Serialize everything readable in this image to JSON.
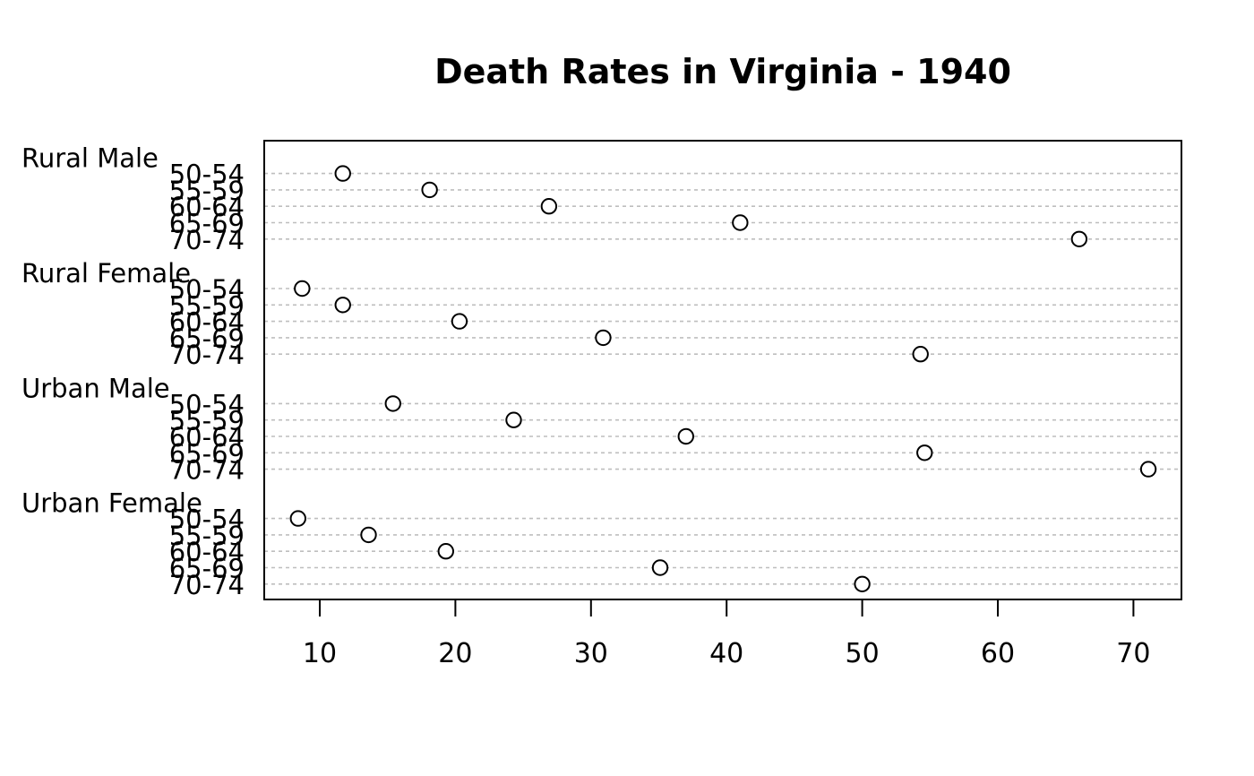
{
  "chart_data": {
    "type": "scatter",
    "title": "Death Rates in Virginia - 1940",
    "xlabel": "",
    "ylabel": "",
    "xlim": [
      5.9,
      73.5
    ],
    "xticks": [
      10,
      20,
      30,
      40,
      50,
      60,
      70
    ],
    "grid": "dotted horizontal guides",
    "categories": [
      "50-54",
      "55-59",
      "60-64",
      "65-69",
      "70-74"
    ],
    "groups": [
      {
        "name": "Rural Male",
        "values": [
          11.7,
          18.1,
          26.9,
          41.0,
          66.0
        ]
      },
      {
        "name": "Rural Female",
        "values": [
          8.7,
          11.7,
          20.3,
          30.9,
          54.3
        ]
      },
      {
        "name": "Urban Male",
        "values": [
          15.4,
          24.3,
          37.0,
          54.6,
          71.1
        ]
      },
      {
        "name": "Urban Female",
        "values": [
          8.4,
          13.6,
          19.3,
          35.1,
          50.0
        ]
      }
    ]
  }
}
